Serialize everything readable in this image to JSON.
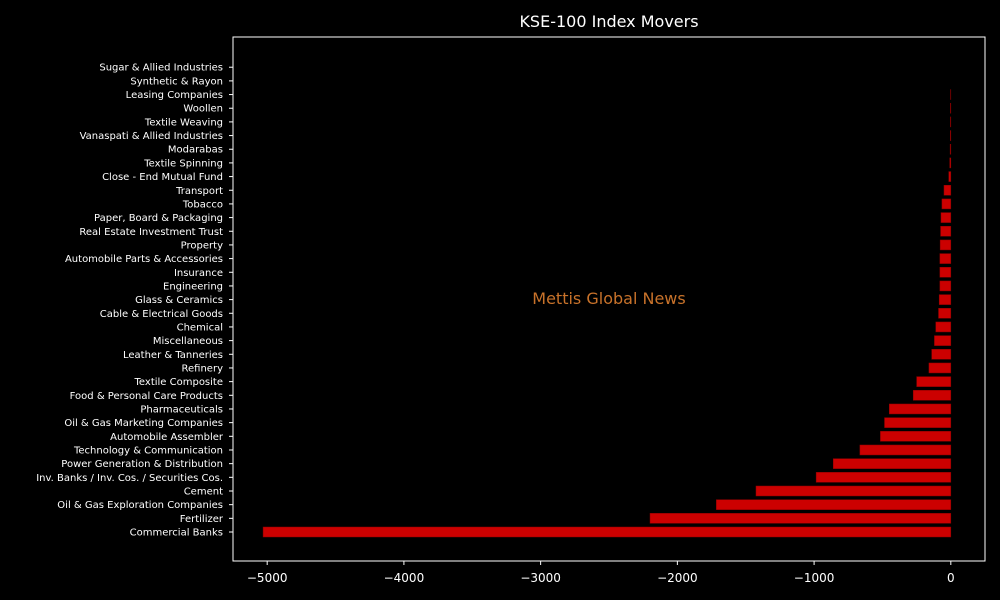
{
  "chart_data": {
    "type": "bar",
    "orientation": "horizontal",
    "title": "KSE-100 Index Movers",
    "xlabel": "",
    "ylabel": "",
    "watermark": "Mettis Global News",
    "xlim": [
      -5250,
      250
    ],
    "xticks": [
      -5000,
      -4000,
      -3000,
      -2000,
      -1000,
      0
    ],
    "xtick_labels": [
      "−5000",
      "−4000",
      "−3000",
      "−2000",
      "−1000",
      "0"
    ],
    "grid": false,
    "categories": [
      "Commercial Banks",
      "Fertilizer",
      "Oil & Gas Exploration Companies",
      "Cement",
      "Inv. Banks / Inv. Cos. / Securities Cos.",
      "Power Generation & Distribution",
      "Technology & Communication",
      "Automobile Assembler",
      "Oil & Gas Marketing Companies",
      "Pharmaceuticals",
      "Food & Personal Care Products",
      "Textile Composite",
      "Refinery",
      "Leather & Tanneries",
      "Miscellaneous",
      "Chemical",
      "Cable & Electrical Goods",
      "Glass & Ceramics",
      "Engineering",
      "Insurance",
      "Automobile Parts & Accessories",
      "Property",
      "Real Estate Investment Trust",
      "Paper, Board & Packaging",
      "Tobacco",
      "Transport",
      "Close - End Mutual Fund",
      "Textile Spinning",
      "Modarabas",
      "Vanaspati & Allied Industries",
      "Textile Weaving",
      "Woollen",
      "Leasing Companies",
      "Synthetic & Rayon",
      "Sugar & Allied Industries"
    ],
    "values": [
      -5030,
      -2200,
      -1715,
      -1425,
      -985,
      -860,
      -665,
      -515,
      -485,
      -450,
      -275,
      -250,
      -160,
      -140,
      -120,
      -110,
      -90,
      -85,
      -80,
      -80,
      -80,
      -78,
      -75,
      -72,
      -65,
      -50,
      -15,
      -8,
      -5,
      -4,
      -3,
      -3,
      -2,
      0,
      0
    ],
    "colors": {
      "background": "#000000",
      "bar": "#cc0000",
      "bar_edge": "#8b0000",
      "axes": "#ffffff",
      "text": "#ffffff",
      "watermark": "#c8722a"
    }
  }
}
